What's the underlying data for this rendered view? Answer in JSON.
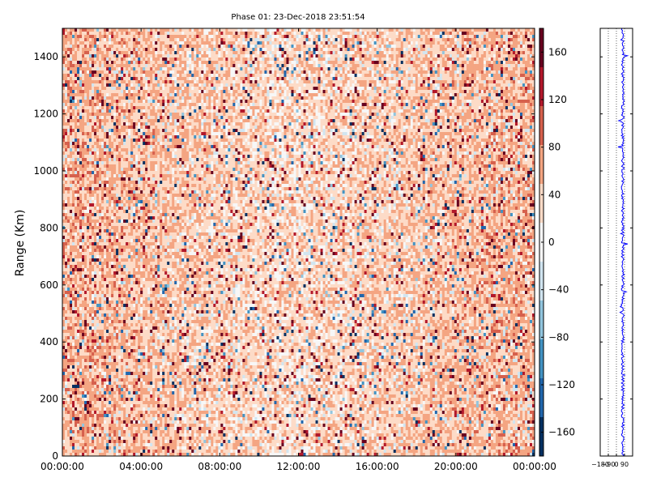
{
  "chart_data": [
    {
      "type": "heatmap",
      "title": "Phase 01: 23-Dec-2018 23:51:54",
      "ylabel": "Range (Km)",
      "xlabel": "",
      "x_ticks": [
        "00:00:00",
        "04:00:00",
        "08:00:00",
        "12:00:00",
        "16:00:00",
        "20:00:00",
        "00:00:00"
      ],
      "y_ticks": [
        0,
        200,
        400,
        600,
        800,
        1000,
        1200,
        1400
      ],
      "ylim": [
        0,
        1500
      ],
      "colorbar": {
        "range": [
          -180,
          180
        ],
        "ticks": [
          160,
          120,
          80,
          40,
          0,
          -40,
          -80,
          -120,
          -160
        ],
        "colormap": "RdBu_r (discrete)",
        "colors_low_to_high": [
          "#053061",
          "#2166ac",
          "#4393c3",
          "#92c5de",
          "#d1e5f0",
          "#f7f7f7",
          "#fddbc7",
          "#f4a582",
          "#d6604d",
          "#b2182b",
          "#67001f"
        ]
      },
      "description_values": {
        "dominant_value_range": [
          40,
          100
        ],
        "typical_value": 60
      }
    },
    {
      "type": "line",
      "title": "",
      "x_ticks": [
        -180,
        -90,
        0,
        90
      ],
      "xlim": [
        -180,
        180
      ],
      "ylim": [
        0,
        1500
      ],
      "series_color": "#0000ff",
      "grid": "dotted vertical"
    }
  ]
}
